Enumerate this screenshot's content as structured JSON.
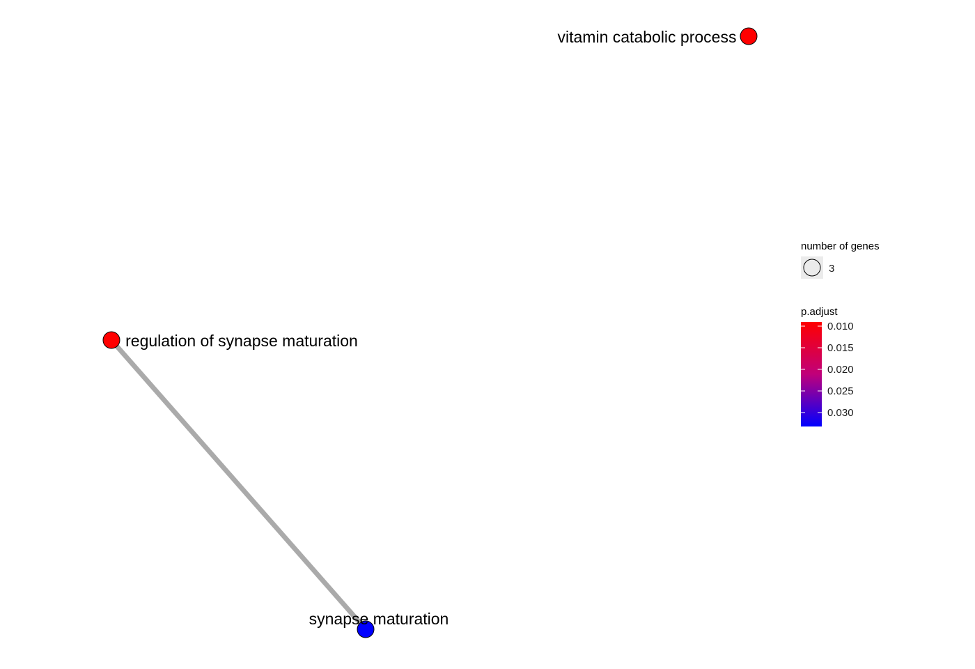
{
  "network": {
    "nodes": [
      {
        "id": "vitamin",
        "label": "vitamin catabolic process",
        "p_adjust": 0.01,
        "gene_count": 3
      },
      {
        "id": "regulation",
        "label": "regulation of synapse maturation",
        "p_adjust": 0.01,
        "gene_count": 3
      },
      {
        "id": "synapse",
        "label": "synapse maturation",
        "p_adjust": 0.03,
        "gene_count": 3
      }
    ],
    "edges": [
      {
        "source": "regulation",
        "target": "synapse",
        "color": "#aaaaaa"
      }
    ]
  },
  "legend": {
    "size": {
      "title": "number of genes",
      "entries": [
        {
          "label": "3",
          "value": 3
        }
      ]
    },
    "color": {
      "title": "p.adjust",
      "ticks": [
        "0.010",
        "0.015",
        "0.020",
        "0.025",
        "0.030"
      ],
      "low_color": "#ff0000",
      "high_color": "#0000ff"
    }
  },
  "colors": {
    "node_high_significance": "#ff0000",
    "node_low_significance": "#0000ff",
    "edge": "#aaaaaa",
    "node_stroke": "#000000",
    "size_key_background": "#ebebeb"
  }
}
